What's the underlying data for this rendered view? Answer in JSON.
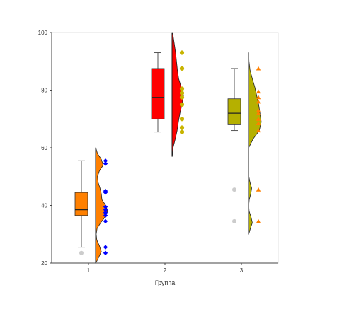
{
  "chart_data": {
    "type": "raincloud",
    "title": "",
    "xlabel": "Группа",
    "ylabel": "",
    "categories": [
      "1",
      "2",
      "3"
    ],
    "ylim": [
      20,
      100
    ],
    "yticks": [
      "20",
      "40",
      "60",
      "80",
      "100"
    ],
    "grid": false,
    "groups": [
      {
        "name": "1",
        "color": "#ff8000",
        "points_color": "#0000ff",
        "points_marker": "diamond",
        "box": {
          "whisker_low": 25.5,
          "q1": 36.5,
          "median": 38.5,
          "q3": 44.5,
          "whisker_high": 55.5
        },
        "outliers": [
          23.5
        ],
        "points": [
          23.5,
          25.5,
          34.5,
          36.5,
          37.5,
          38.5,
          39.5,
          44.5,
          45.0,
          54.5,
          55.5
        ],
        "density": [
          [
            20,
            0.02
          ],
          [
            22,
            0.25
          ],
          [
            24,
            0.45
          ],
          [
            26,
            0.3
          ],
          [
            28,
            0.1
          ],
          [
            30,
            0.05
          ],
          [
            32,
            0.12
          ],
          [
            34,
            0.4
          ],
          [
            36,
            0.75
          ],
          [
            38,
            0.95
          ],
          [
            40,
            0.8
          ],
          [
            42,
            0.5
          ],
          [
            44,
            0.45
          ],
          [
            46,
            0.35
          ],
          [
            48,
            0.2
          ],
          [
            50,
            0.15
          ],
          [
            52,
            0.3
          ],
          [
            54,
            0.6
          ],
          [
            56,
            0.45
          ],
          [
            58,
            0.15
          ],
          [
            60,
            0.02
          ]
        ]
      },
      {
        "name": "2",
        "color": "#ff0000",
        "points_color": "#c8b400",
        "points_marker": "circle",
        "box": {
          "whisker_low": 65.5,
          "q1": 70.0,
          "median": 77.5,
          "q3": 87.5,
          "whisker_high": 93.0
        },
        "outliers": [],
        "points": [
          65.5,
          67.0,
          70.0,
          75.0,
          77.5,
          79.0,
          80.5,
          87.5,
          93.0
        ],
        "density": [
          [
            57,
            0.02
          ],
          [
            60,
            0.08
          ],
          [
            63,
            0.25
          ],
          [
            66,
            0.4
          ],
          [
            69,
            0.5
          ],
          [
            72,
            0.62
          ],
          [
            75,
            0.78
          ],
          [
            78,
            0.9
          ],
          [
            81,
            0.72
          ],
          [
            84,
            0.52
          ],
          [
            87,
            0.42
          ],
          [
            90,
            0.35
          ],
          [
            93,
            0.28
          ],
          [
            96,
            0.18
          ],
          [
            99,
            0.08
          ],
          [
            100,
            0.03
          ]
        ]
      },
      {
        "name": "3",
        "color": "#b5b000",
        "points_color": "#ff8000",
        "points_marker": "triangle",
        "box": {
          "whisker_low": 66.0,
          "q1": 68.0,
          "median": 72.0,
          "q3": 77.0,
          "whisker_high": 87.5
        },
        "outliers": [
          45.5,
          34.5
        ],
        "points": [
          34.5,
          45.5,
          66.0,
          68.5,
          70.0,
          72.0,
          73.0,
          76.0,
          77.5,
          79.5,
          87.5
        ],
        "density": [
          [
            30,
            0.02
          ],
          [
            32,
            0.15
          ],
          [
            34,
            0.3
          ],
          [
            36,
            0.2
          ],
          [
            38,
            0.05
          ],
          [
            40,
            0.02
          ],
          [
            42,
            0.06
          ],
          [
            44,
            0.18
          ],
          [
            46,
            0.25
          ],
          [
            48,
            0.12
          ],
          [
            50,
            0.03
          ],
          [
            55,
            0.0
          ],
          [
            60,
            0.02
          ],
          [
            63,
            0.35
          ],
          [
            66,
            0.85
          ],
          [
            69,
            1.0
          ],
          [
            72,
            0.9
          ],
          [
            75,
            0.8
          ],
          [
            78,
            0.65
          ],
          [
            81,
            0.5
          ],
          [
            84,
            0.3
          ],
          [
            87,
            0.12
          ],
          [
            90,
            0.04
          ],
          [
            93,
            0.01
          ]
        ]
      }
    ]
  }
}
